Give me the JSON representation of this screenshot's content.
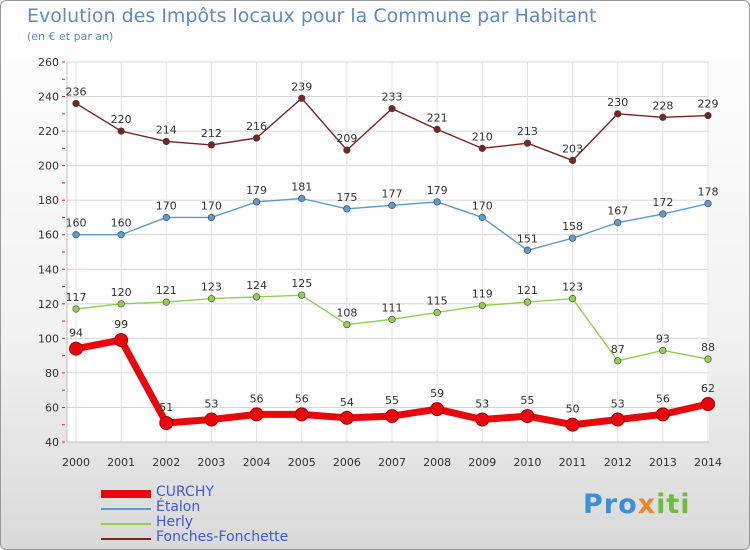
{
  "title": "Evolution des Impôts locaux pour la Commune par Habitant",
  "subtitle": "(en € et par an)",
  "logo": {
    "text": "Proxiti",
    "colors": [
      "#3b8fd9",
      "#e9892c",
      "#6cbf3c"
    ]
  },
  "chart_data": {
    "type": "line",
    "x": [
      "2000",
      "2001",
      "2002",
      "2003",
      "2004",
      "2005",
      "2006",
      "2007",
      "2008",
      "2009",
      "2010",
      "2011",
      "2012",
      "2013",
      "2014"
    ],
    "ylim": [
      40,
      260
    ],
    "yticks": [
      40,
      60,
      80,
      100,
      120,
      140,
      160,
      180,
      200,
      220,
      240,
      260
    ],
    "grid": true,
    "legend_position": "bottom-left",
    "series": [
      {
        "name": "CURCHY",
        "color": "#e8070a",
        "values": [
          94,
          99,
          51,
          53,
          56,
          56,
          54,
          55,
          59,
          53,
          55,
          50,
          53,
          56,
          62
        ]
      },
      {
        "name": "Étalon",
        "color": "#5a9bd5",
        "values": [
          160,
          160,
          170,
          170,
          179,
          181,
          175,
          177,
          179,
          170,
          151,
          158,
          167,
          172,
          178
        ]
      },
      {
        "name": "Herly",
        "color": "#8fd14f",
        "values": [
          117,
          120,
          121,
          123,
          124,
          125,
          108,
          111,
          115,
          119,
          121,
          123,
          87,
          93,
          88
        ]
      },
      {
        "name": "Fonches-Fonchette",
        "color": "#7b2222",
        "values": [
          236,
          220,
          214,
          212,
          216,
          239,
          209,
          233,
          221,
          210,
          213,
          203,
          230,
          228,
          229
        ]
      }
    ]
  }
}
